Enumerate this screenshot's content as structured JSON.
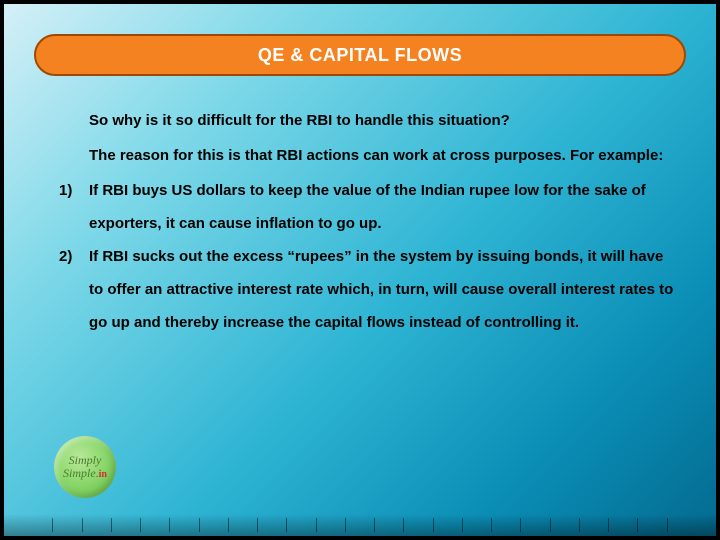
{
  "title": "QE & CAPITAL FLOWS",
  "intro_line1": "So why is it so difficult for the RBI to handle this situation?",
  "intro_line2": "The reason for this is that RBI actions can work at cross purposes. For example:",
  "items": [
    {
      "num": "1)",
      "text": "If RBI buys US dollars to keep the value of the Indian rupee low for the sake of exporters, it can cause inflation to go up."
    },
    {
      "num": "2)",
      "text": "If RBI sucks out the excess “rupees” in the system by issuing bonds, it will have to offer an attractive interest rate which, in turn, will cause overall interest rates to go up and thereby increase the capital flows instead of controlling it."
    }
  ],
  "logo": {
    "line1": "Simply",
    "line2a": "Simple",
    "dot": ".",
    "in": "in"
  },
  "styling": {
    "slide_size": [
      720,
      540
    ],
    "background_gradient": [
      "#d4f0f7",
      "#7dd8e8",
      "#2fb5d4",
      "#0a8db5",
      "#046a8f"
    ],
    "outer_border_color": "#000000",
    "title_bar": {
      "bg": "#f58220",
      "border": "#a04800",
      "text_color": "#ffffff",
      "font_size": 18,
      "radius": 21
    },
    "body_text": {
      "color": "#000000",
      "font_size": 15,
      "font_weight": "bold",
      "line_height": 2.2
    },
    "logo_colors": {
      "fill_gradient": [
        "#b8e89a",
        "#8dd86e",
        "#5eb83e"
      ],
      "text": "#4a7a2a",
      "accent": "#d03030"
    },
    "tick_count": 22,
    "tick_color": "rgba(0,0,0,0.45)"
  }
}
